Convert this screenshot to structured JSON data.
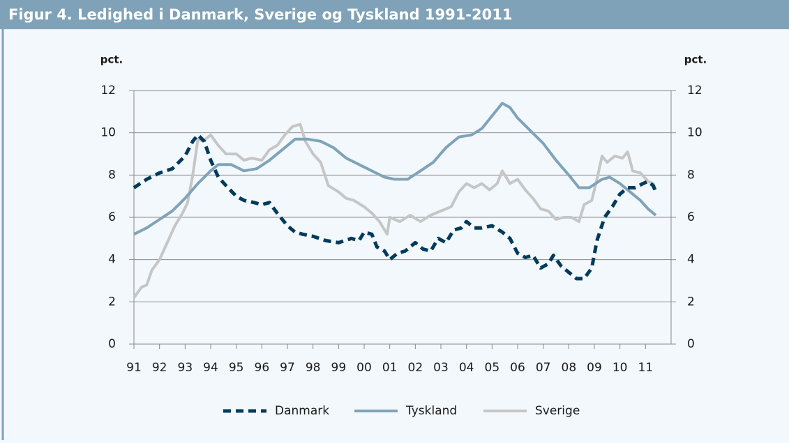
{
  "chart_data": {
    "type": "line",
    "title": "Figur 4. Ledighed i Danmark, Sverige og Tyskland 1991-2011",
    "y_label": "pct.",
    "y2_label": "pct.",
    "xlim": [
      1991,
      2012
    ],
    "xticks": [
      {
        "value": 1991,
        "label": "91"
      },
      {
        "value": 1992,
        "label": "92"
      },
      {
        "value": 1993,
        "label": "93"
      },
      {
        "value": 1994,
        "label": "94"
      },
      {
        "value": 1995,
        "label": "95"
      },
      {
        "value": 1996,
        "label": "96"
      },
      {
        "value": 1997,
        "label": "97"
      },
      {
        "value": 1998,
        "label": "98"
      },
      {
        "value": 1999,
        "label": "99"
      },
      {
        "value": 2000,
        "label": "00"
      },
      {
        "value": 2001,
        "label": "01"
      },
      {
        "value": 2002,
        "label": "02"
      },
      {
        "value": 2003,
        "label": "03"
      },
      {
        "value": 2004,
        "label": "04"
      },
      {
        "value": 2005,
        "label": "05"
      },
      {
        "value": 2006,
        "label": "06"
      },
      {
        "value": 2007,
        "label": "07"
      },
      {
        "value": 2008,
        "label": "08"
      },
      {
        "value": 2009,
        "label": "09"
      },
      {
        "value": 2010,
        "label": "10"
      },
      {
        "value": 2011,
        "label": "11"
      }
    ],
    "ylim": [
      0,
      12
    ],
    "yticks": [
      0,
      2,
      4,
      6,
      8,
      10,
      12
    ],
    "y2lim": [
      0,
      12
    ],
    "y2ticks": [
      0,
      2,
      4,
      6,
      8,
      10,
      12
    ],
    "grid": true,
    "series": [
      {
        "name": "Danmark",
        "color": "#003b5c",
        "dashed": true,
        "x": [
          1991.0,
          1991.5,
          1992.0,
          1992.5,
          1993.0,
          1993.3,
          1993.5,
          1993.75,
          1994.0,
          1994.3,
          1994.6,
          1995.0,
          1995.3,
          1995.7,
          1996.0,
          1996.3,
          1996.6,
          1997.0,
          1997.3,
          1997.6,
          1998.0,
          1998.5,
          1999.0,
          1999.5,
          1999.8,
          2000.0,
          2000.3,
          2000.5,
          2000.8,
          2001.0,
          2001.3,
          2001.6,
          2002.0,
          2002.3,
          2002.6,
          2002.9,
          2003.2,
          2003.5,
          2003.8,
          2004.0,
          2004.3,
          2004.6,
          2005.0,
          2005.4,
          2005.7,
          2006.0,
          2006.3,
          2006.6,
          2006.9,
          2007.2,
          2007.4,
          2007.7,
          2008.0,
          2008.3,
          2008.6,
          2008.9,
          2009.1,
          2009.4,
          2009.7,
          2010.0,
          2010.3,
          2010.6,
          2010.9,
          2011.1,
          2011.3,
          2011.4
        ],
        "values": [
          7.4,
          7.8,
          8.1,
          8.3,
          8.9,
          9.6,
          9.9,
          9.6,
          8.7,
          7.9,
          7.5,
          7.0,
          6.8,
          6.7,
          6.6,
          6.7,
          6.2,
          5.6,
          5.3,
          5.2,
          5.1,
          4.9,
          4.8,
          5.0,
          4.9,
          5.3,
          5.2,
          4.6,
          4.4,
          4.0,
          4.3,
          4.4,
          4.8,
          4.5,
          4.4,
          5.0,
          4.8,
          5.4,
          5.5,
          5.8,
          5.5,
          5.5,
          5.6,
          5.3,
          5.0,
          4.3,
          4.1,
          4.2,
          3.6,
          3.8,
          4.2,
          3.7,
          3.4,
          3.1,
          3.1,
          3.6,
          4.9,
          6.0,
          6.5,
          7.1,
          7.4,
          7.4,
          7.6,
          7.7,
          7.5,
          7.2
        ]
      },
      {
        "name": "Tyskland",
        "color": "#7fa3b9",
        "dashed": false,
        "x": [
          1991.0,
          1991.5,
          1992.0,
          1992.5,
          1993.0,
          1993.5,
          1994.0,
          1994.3,
          1994.8,
          1995.3,
          1995.8,
          1996.3,
          1996.8,
          1997.3,
          1997.8,
          1998.3,
          1998.8,
          1999.3,
          1999.8,
          2000.3,
          2000.8,
          2001.2,
          2001.7,
          2002.2,
          2002.7,
          2003.2,
          2003.7,
          2004.2,
          2004.6,
          2005.0,
          2005.4,
          2005.7,
          2006.0,
          2006.5,
          2007.0,
          2007.5,
          2008.0,
          2008.4,
          2008.8,
          2009.3,
          2009.6,
          2010.0,
          2010.4,
          2010.8,
          2011.1,
          2011.4
        ],
        "values": [
          5.2,
          5.5,
          5.9,
          6.3,
          6.9,
          7.6,
          8.2,
          8.5,
          8.5,
          8.2,
          8.3,
          8.7,
          9.2,
          9.7,
          9.7,
          9.6,
          9.3,
          8.8,
          8.5,
          8.2,
          7.9,
          7.8,
          7.8,
          8.2,
          8.6,
          9.3,
          9.8,
          9.9,
          10.2,
          10.8,
          11.4,
          11.2,
          10.7,
          10.1,
          9.5,
          8.7,
          8.0,
          7.4,
          7.4,
          7.8,
          7.9,
          7.6,
          7.2,
          6.8,
          6.4,
          6.1
        ]
      },
      {
        "name": "Sverige",
        "color": "#c6c6c6",
        "dashed": false,
        "x": [
          1991.0,
          1991.3,
          1991.5,
          1991.7,
          1992.0,
          1992.3,
          1992.6,
          1992.9,
          1993.1,
          1993.3,
          1993.5,
          1993.7,
          1994.0,
          1994.3,
          1994.6,
          1995.0,
          1995.3,
          1995.6,
          1996.0,
          1996.3,
          1996.6,
          1996.9,
          1997.2,
          1997.5,
          1997.7,
          1998.0,
          1998.3,
          1998.6,
          1999.0,
          1999.3,
          1999.6,
          2000.0,
          2000.3,
          2000.6,
          2000.9,
          2001.0,
          2001.4,
          2001.8,
          2002.2,
          2002.6,
          2003.0,
          2003.4,
          2003.7,
          2004.0,
          2004.3,
          2004.6,
          2004.9,
          2005.2,
          2005.4,
          2005.7,
          2006.0,
          2006.3,
          2006.6,
          2006.9,
          2007.2,
          2007.5,
          2007.8,
          2008.1,
          2008.4,
          2008.6,
          2008.9,
          2009.1,
          2009.3,
          2009.5,
          2009.8,
          2010.1,
          2010.3,
          2010.5,
          2010.8,
          2011.1,
          2011.3,
          2011.4
        ],
        "values": [
          2.2,
          2.7,
          2.8,
          3.5,
          4.0,
          4.8,
          5.6,
          6.2,
          6.7,
          8.0,
          9.7,
          9.6,
          9.9,
          9.4,
          9.0,
          9.0,
          8.7,
          8.8,
          8.7,
          9.2,
          9.4,
          9.9,
          10.3,
          10.4,
          9.6,
          9.0,
          8.6,
          7.5,
          7.2,
          6.9,
          6.8,
          6.5,
          6.2,
          5.8,
          5.2,
          6.0,
          5.8,
          6.1,
          5.8,
          6.1,
          6.3,
          6.5,
          7.2,
          7.6,
          7.4,
          7.6,
          7.3,
          7.6,
          8.2,
          7.6,
          7.8,
          7.3,
          6.9,
          6.4,
          6.3,
          5.9,
          6.0,
          6.0,
          5.8,
          6.6,
          6.8,
          7.8,
          8.9,
          8.6,
          8.9,
          8.8,
          9.1,
          8.2,
          8.1,
          7.7,
          7.6,
          7.3
        ]
      }
    ]
  }
}
